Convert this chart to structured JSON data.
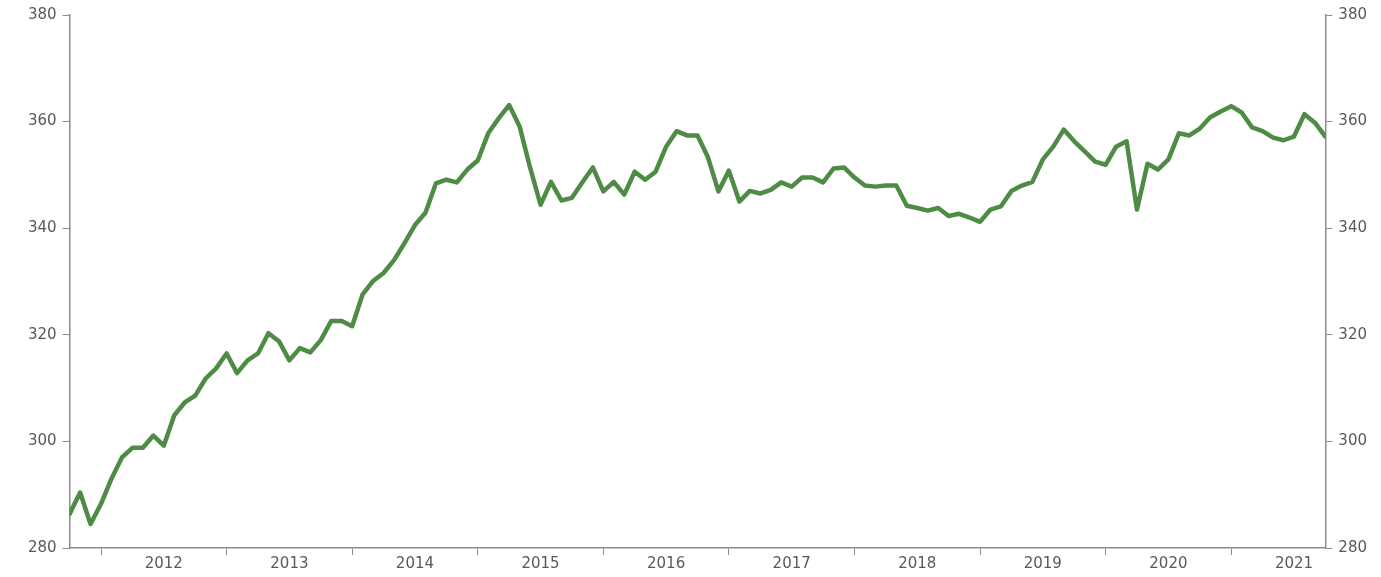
{
  "chart_data": {
    "type": "line",
    "x": [
      "2011-10",
      "2011-11",
      "2011-12",
      "2012-01",
      "2012-02",
      "2012-03",
      "2012-04",
      "2012-05",
      "2012-06",
      "2012-07",
      "2012-08",
      "2012-09",
      "2012-10",
      "2012-11",
      "2012-12",
      "2013-01",
      "2013-02",
      "2013-03",
      "2013-04",
      "2013-05",
      "2013-06",
      "2013-07",
      "2013-08",
      "2013-09",
      "2013-10",
      "2013-11",
      "2013-12",
      "2014-01",
      "2014-02",
      "2014-03",
      "2014-04",
      "2014-05",
      "2014-06",
      "2014-07",
      "2014-08",
      "2014-09",
      "2014-10",
      "2014-11",
      "2014-12",
      "2015-01",
      "2015-02",
      "2015-03",
      "2015-04",
      "2015-05",
      "2015-06",
      "2015-07",
      "2015-08",
      "2015-09",
      "2015-10",
      "2015-11",
      "2015-12",
      "2016-01",
      "2016-02",
      "2016-03",
      "2016-04",
      "2016-05",
      "2016-06",
      "2016-07",
      "2016-08",
      "2016-09",
      "2016-10",
      "2016-11",
      "2016-12",
      "2017-01",
      "2017-02",
      "2017-03",
      "2017-04",
      "2017-05",
      "2017-06",
      "2017-07",
      "2017-08",
      "2017-09",
      "2017-10",
      "2017-11",
      "2017-12",
      "2018-01",
      "2018-02",
      "2018-03",
      "2018-04",
      "2018-05",
      "2018-06",
      "2018-07",
      "2018-08",
      "2018-09",
      "2018-10",
      "2018-11",
      "2018-12",
      "2019-01",
      "2019-02",
      "2019-03",
      "2019-04",
      "2019-05",
      "2019-06",
      "2019-07",
      "2019-08",
      "2019-09",
      "2019-10",
      "2019-11",
      "2019-12",
      "2020-01",
      "2020-02",
      "2020-03",
      "2020-04",
      "2020-05",
      "2020-06",
      "2020-07",
      "2020-08",
      "2020-09",
      "2020-10",
      "2020-11",
      "2020-12",
      "2021-01",
      "2021-02",
      "2021-03",
      "2021-04",
      "2021-05",
      "2021-06",
      "2021-07",
      "2021-08",
      "2021-09",
      "2021-10"
    ],
    "series": [
      {
        "color": "#4e8b44",
        "values": [
          286.4,
          290.4,
          284.5,
          288.3,
          293.0,
          297.0,
          298.8,
          298.8,
          301.1,
          299.2,
          304.9,
          307.3,
          308.6,
          311.8,
          313.7,
          316.5,
          312.8,
          315.2,
          316.5,
          320.3,
          318.8,
          315.2,
          317.5,
          316.7,
          319.0,
          322.6,
          322.6,
          321.6,
          327.6,
          330.1,
          331.6,
          334.0,
          337.2,
          340.6,
          342.9,
          348.4,
          349.1,
          348.6,
          351.0,
          352.7,
          357.8,
          360.6,
          363.1,
          359.1,
          351.4,
          344.4,
          348.7,
          345.2,
          345.7,
          348.6,
          351.4,
          346.9,
          348.7,
          346.3,
          350.6,
          349.1,
          350.6,
          355.3,
          358.2,
          357.4,
          357.4,
          353.3,
          346.9,
          350.8,
          345.0,
          347.0,
          346.5,
          347.2,
          348.6,
          347.8,
          349.5,
          349.5,
          348.6,
          351.2,
          351.4,
          349.5,
          348.0,
          347.8,
          348.0,
          348.0,
          344.2,
          343.8,
          343.3,
          343.8,
          342.3,
          342.7,
          342.0,
          341.2,
          343.5,
          344.1,
          347.0,
          348.0,
          348.7,
          352.9,
          355.3,
          358.5,
          356.3,
          354.4,
          352.5,
          351.9,
          355.3,
          356.3,
          343.5,
          352.1,
          351.0,
          352.9,
          357.8,
          357.4,
          358.7,
          360.8,
          361.9,
          362.9,
          361.7,
          358.9,
          358.2,
          357.0,
          356.5,
          357.2,
          361.4,
          359.8,
          357.2
        ]
      }
    ],
    "xlim": [
      "2011-10",
      "2021-10"
    ],
    "xticks": [
      {
        "value": "2012-01",
        "label": null
      },
      {
        "value": "2012-07",
        "label": "2012"
      },
      {
        "value": "2013-01",
        "label": null
      },
      {
        "value": "2013-07",
        "label": "2013"
      },
      {
        "value": "2014-01",
        "label": null
      },
      {
        "value": "2014-07",
        "label": "2014"
      },
      {
        "value": "2015-01",
        "label": null
      },
      {
        "value": "2015-07",
        "label": "2015"
      },
      {
        "value": "2016-01",
        "label": null
      },
      {
        "value": "2016-07",
        "label": "2016"
      },
      {
        "value": "2017-01",
        "label": null
      },
      {
        "value": "2017-07",
        "label": "2017"
      },
      {
        "value": "2018-01",
        "label": null
      },
      {
        "value": "2018-07",
        "label": "2018"
      },
      {
        "value": "2019-01",
        "label": null
      },
      {
        "value": "2019-07",
        "label": "2019"
      },
      {
        "value": "2020-01",
        "label": null
      },
      {
        "value": "2020-07",
        "label": "2020"
      },
      {
        "value": "2021-01",
        "label": null
      },
      {
        "value": "2021-07",
        "label": "2021"
      }
    ],
    "ylim": [
      280,
      380
    ],
    "yticks": [
      280,
      300,
      320,
      340,
      360,
      380
    ],
    "y2lim": [
      280,
      380
    ],
    "y2ticks": [
      280,
      300,
      320,
      340,
      360,
      380
    ],
    "grid": false,
    "legend": false,
    "marker": "none",
    "line_style": "solid"
  }
}
